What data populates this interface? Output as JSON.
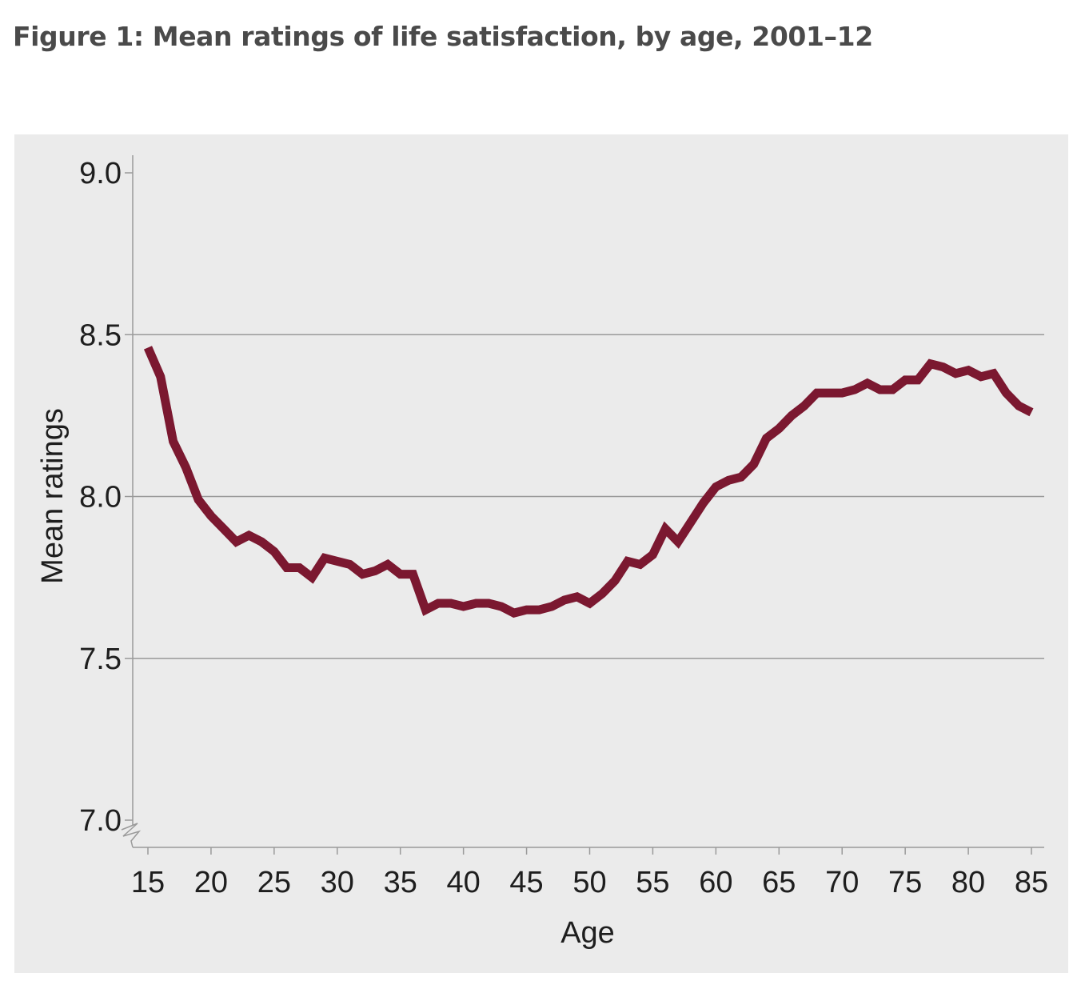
{
  "title": "Figure 1: Mean ratings of life satisfaction, by age, 2001–12",
  "colors": {
    "line": "#7b1830",
    "grid": "#9a9a9a",
    "panel": "#ebebeb"
  },
  "chart_data": {
    "type": "line",
    "xlabel": "Age",
    "ylabel": "Mean ratings",
    "xlim": [
      15,
      85
    ],
    "ylim": [
      7.0,
      9.0
    ],
    "x_ticks": [
      "15",
      "20",
      "25",
      "30",
      "35",
      "40",
      "45",
      "50",
      "55",
      "60",
      "65",
      "70",
      "75",
      "80",
      "85"
    ],
    "y_ticks": [
      "9.0",
      "8.5",
      "8.0",
      "7.5",
      "7.0"
    ],
    "y_axis_break": true,
    "grid": "horizontal",
    "series": [
      {
        "x": [
          15,
          16,
          17,
          18,
          19,
          20,
          21,
          22,
          23,
          24,
          25,
          26,
          27,
          28,
          29,
          30,
          31,
          32,
          33,
          34,
          35,
          36,
          37,
          38,
          39,
          40,
          41,
          42,
          43,
          44,
          45,
          46,
          47,
          48,
          49,
          50,
          51,
          52,
          53,
          54,
          55,
          56,
          57,
          58,
          59,
          60,
          61,
          62,
          63,
          64,
          65,
          66,
          67,
          68,
          69,
          70,
          71,
          72,
          73,
          74,
          75,
          76,
          77,
          78,
          79,
          80,
          81,
          82,
          83,
          84,
          85
        ],
        "y": [
          8.46,
          8.37,
          8.17,
          8.09,
          7.99,
          7.94,
          7.9,
          7.86,
          7.88,
          7.86,
          7.83,
          7.78,
          7.78,
          7.75,
          7.81,
          7.8,
          7.79,
          7.76,
          7.77,
          7.79,
          7.76,
          7.76,
          7.65,
          7.67,
          7.67,
          7.66,
          7.67,
          7.67,
          7.66,
          7.64,
          7.65,
          7.65,
          7.66,
          7.68,
          7.69,
          7.67,
          7.7,
          7.74,
          7.8,
          7.79,
          7.82,
          7.9,
          7.86,
          7.92,
          7.98,
          8.03,
          8.05,
          8.06,
          8.1,
          8.18,
          8.21,
          8.25,
          8.28,
          8.32,
          8.32,
          8.32,
          8.33,
          8.35,
          8.33,
          8.33,
          8.36,
          8.36,
          8.41,
          8.4,
          8.38,
          8.39,
          8.37,
          8.38,
          8.32,
          8.28,
          8.26
        ]
      }
    ]
  }
}
